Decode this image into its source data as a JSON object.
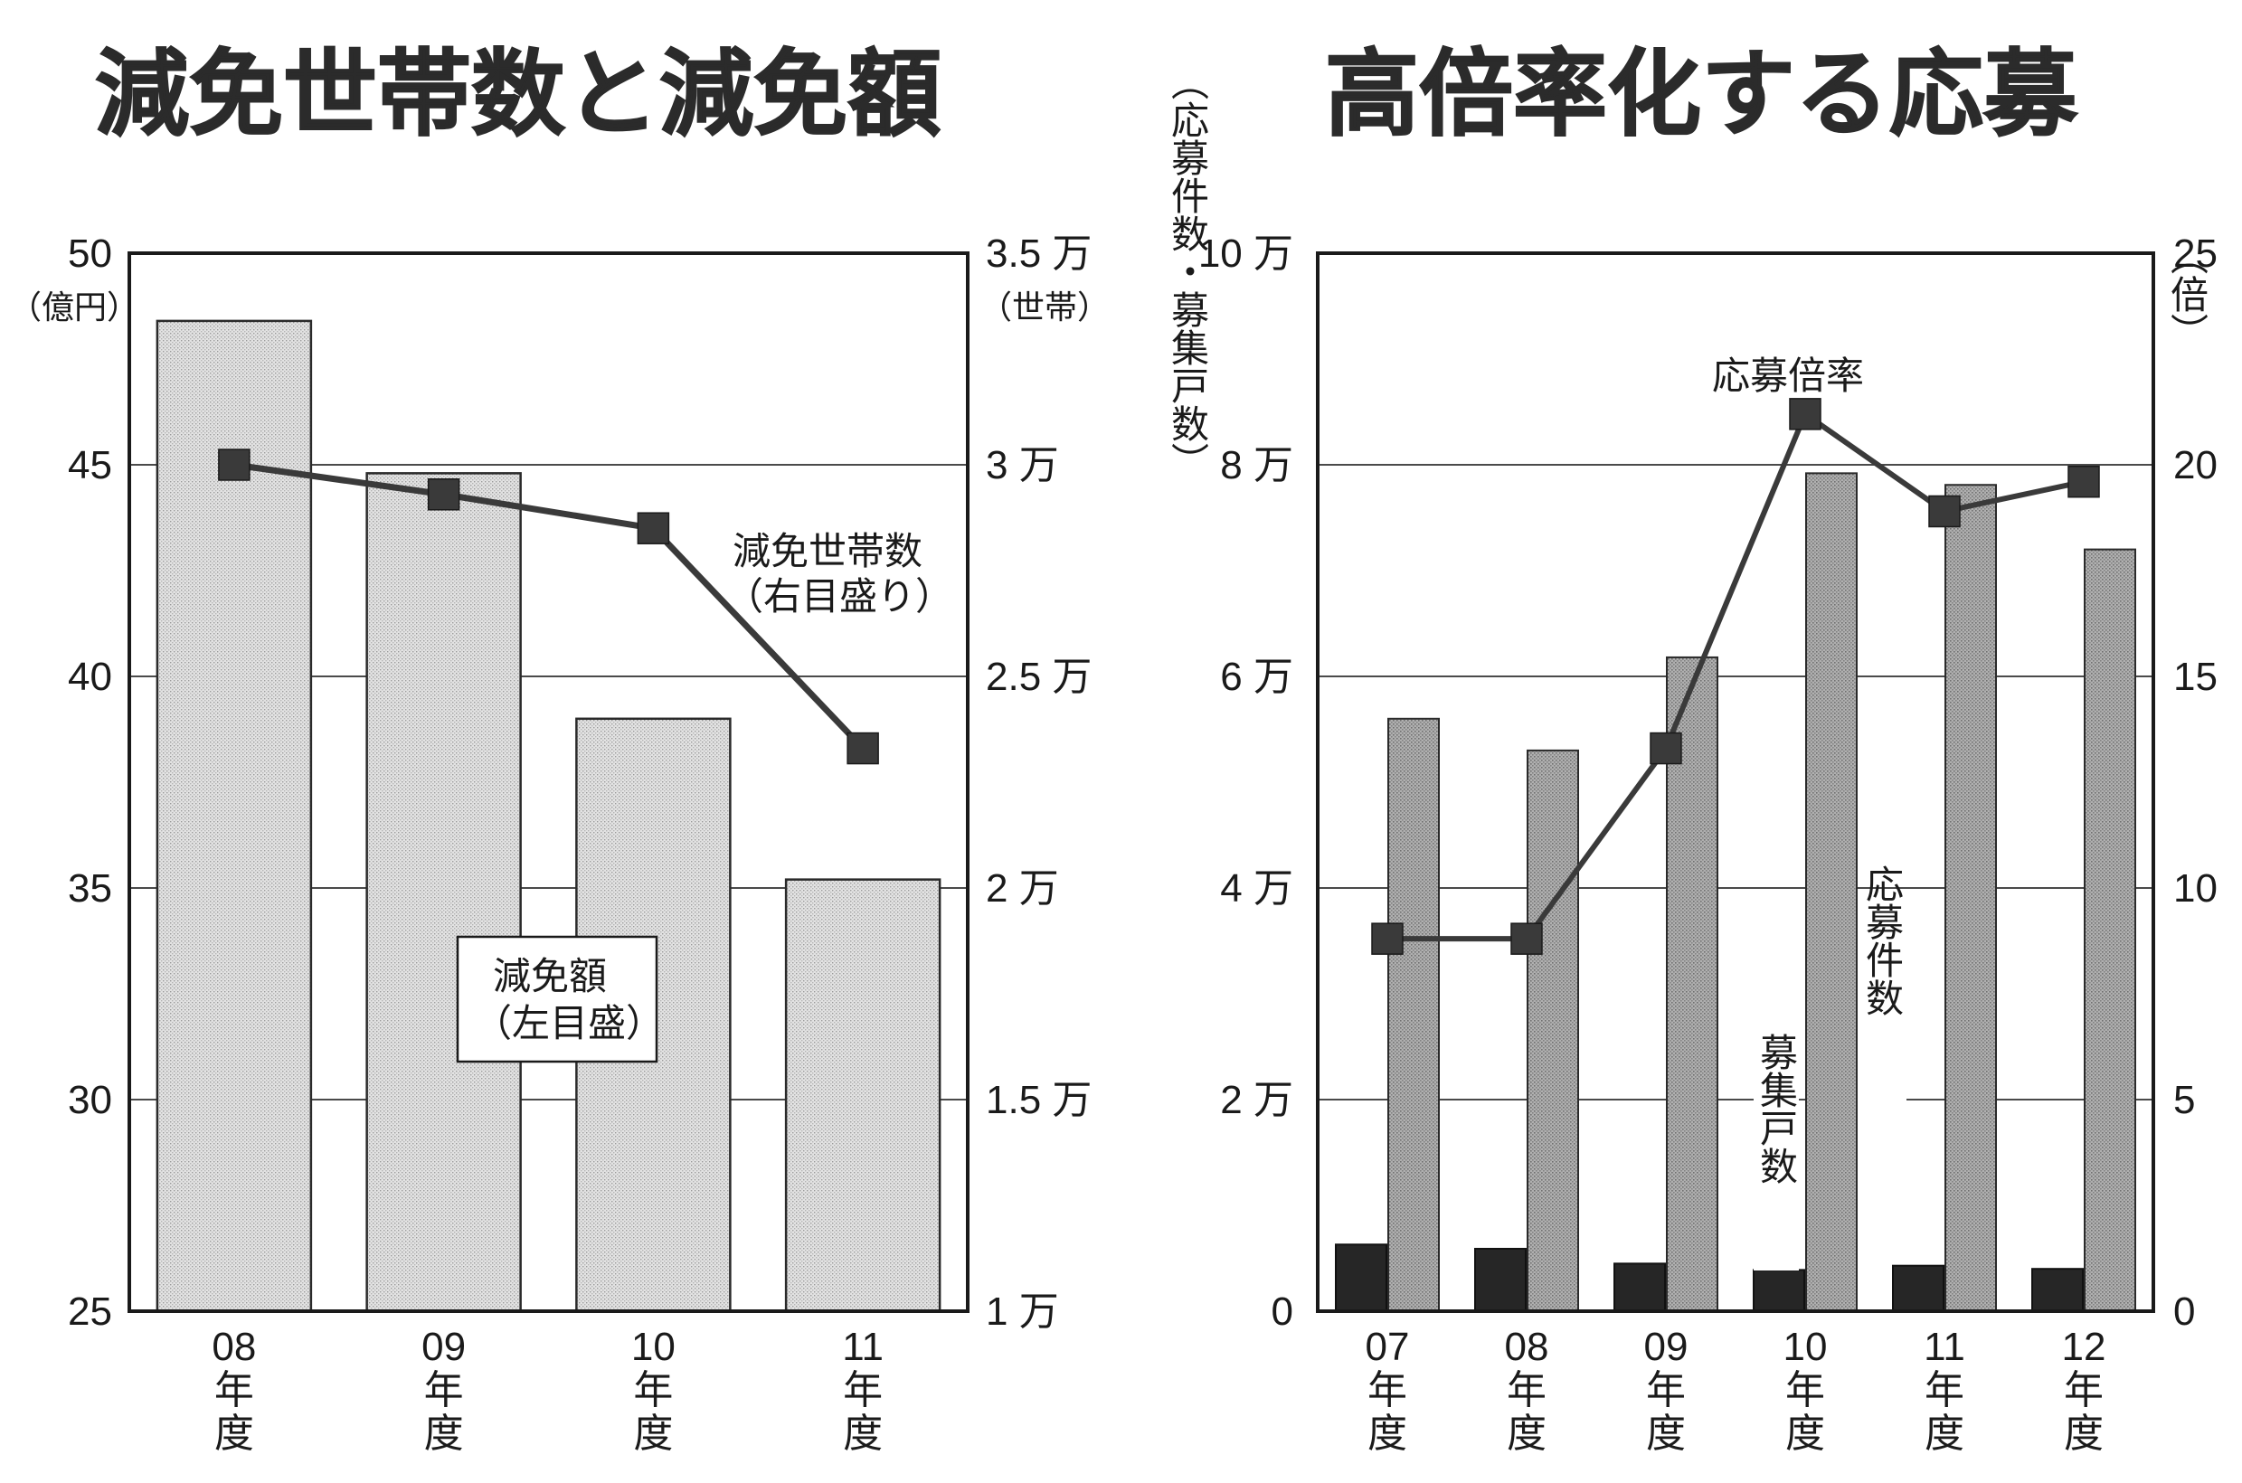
{
  "chart_data": [
    {
      "type": "bar",
      "title": "減免世帯数と減免額",
      "categories": [
        {
          "num": "08",
          "chars": [
            "年",
            "度"
          ]
        },
        {
          "num": "09",
          "chars": [
            "年",
            "度"
          ]
        },
        {
          "num": "10",
          "chars": [
            "年",
            "度"
          ]
        },
        {
          "num": "11",
          "chars": [
            "年",
            "度"
          ]
        }
      ],
      "left_axis": {
        "unit": "（億円）",
        "ylim": [
          25,
          50
        ],
        "ticks": [
          "25",
          "30",
          "35",
          "40",
          "45",
          "50"
        ]
      },
      "right_axis": {
        "unit": "（世帯）",
        "ylim": [
          10000,
          35000
        ],
        "ticks": [
          "1 万",
          "1.5 万",
          "2 万",
          "2.5 万",
          "3 万",
          "3.5 万"
        ]
      },
      "series": [
        {
          "name": "減免額（左目盛）",
          "label_lines": [
            "減免額",
            "（左目盛）"
          ],
          "kind": "bar",
          "axis": "left",
          "values": [
            48.4,
            44.8,
            39.0,
            35.2
          ]
        },
        {
          "name": "減免世帯数（右目盛り）",
          "label_lines": [
            "減免世帯数",
            "（右目盛り）"
          ],
          "kind": "line",
          "axis": "right",
          "values": [
            30000,
            29300,
            28500,
            23300
          ]
        }
      ],
      "grid": true,
      "colors": {
        "bar": "#d8d8d8",
        "line": "#3a3a3a",
        "marker": "#3a3a3a"
      }
    },
    {
      "type": "bar",
      "title": "高倍率化する応募",
      "categories": [
        {
          "num": "07",
          "chars": [
            "年",
            "度"
          ]
        },
        {
          "num": "08",
          "chars": [
            "年",
            "度"
          ]
        },
        {
          "num": "09",
          "chars": [
            "年",
            "度"
          ]
        },
        {
          "num": "10",
          "chars": [
            "年",
            "度"
          ]
        },
        {
          "num": "11",
          "chars": [
            "年",
            "度"
          ]
        },
        {
          "num": "12",
          "chars": [
            "年",
            "度"
          ]
        }
      ],
      "left_axis": {
        "unit": "（応募件数・募集戸数）",
        "ylim": [
          0,
          100000
        ],
        "ticks": [
          "0",
          "2 万",
          "4 万",
          "6 万",
          "8 万",
          "10 万"
        ]
      },
      "right_axis": {
        "unit": "（倍）",
        "ylim": [
          0,
          25
        ],
        "ticks": [
          "0",
          "5",
          "10",
          "15",
          "20",
          "25"
        ]
      },
      "series": [
        {
          "name": "募集戸数",
          "kind": "bar",
          "axis": "left",
          "values": [
            6300,
            5900,
            4500,
            3900,
            4300,
            4000
          ]
        },
        {
          "name": "応募件数",
          "kind": "bar",
          "axis": "left",
          "values": [
            56000,
            53000,
            61800,
            79200,
            78100,
            72000
          ]
        },
        {
          "name": "応募倍率",
          "kind": "line",
          "axis": "right",
          "values": [
            8.8,
            8.8,
            13.3,
            21.2,
            18.9,
            19.6
          ]
        }
      ],
      "grid": true,
      "colors": {
        "bar_small": "#262626",
        "bar_large": "#a9a9a9",
        "line": "#3a3a3a",
        "marker": "#3a3a3a"
      }
    }
  ]
}
